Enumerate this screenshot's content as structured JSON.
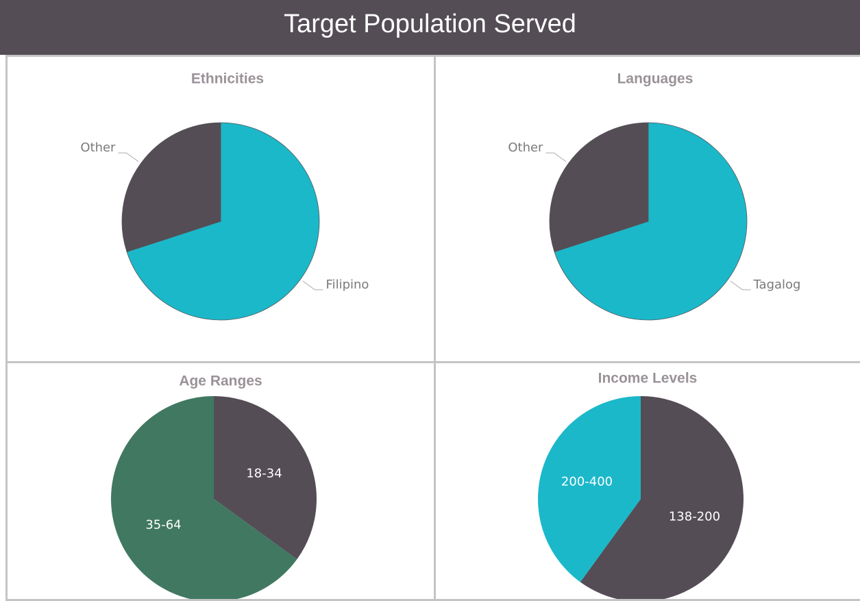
{
  "header": {
    "title": "Target Population Served"
  },
  "chart_data": [
    {
      "type": "pie",
      "title": "Ethnicities",
      "categories": [
        "Filipino",
        "Other"
      ],
      "values": [
        70,
        30
      ],
      "colors": [
        "#1bb8ca",
        "#544d55"
      ]
    },
    {
      "type": "pie",
      "title": "Languages",
      "categories": [
        "Tagalog",
        "Other"
      ],
      "values": [
        70,
        30
      ],
      "colors": [
        "#1bb8ca",
        "#544d55"
      ]
    },
    {
      "type": "pie",
      "title": "Age Ranges",
      "categories": [
        "18-34",
        "35-64"
      ],
      "values": [
        35,
        65
      ],
      "colors": [
        "#544d55",
        "#417862"
      ]
    },
    {
      "type": "pie",
      "title": "Income Levels",
      "categories": [
        "138-200",
        "200-400"
      ],
      "values": [
        60,
        40
      ],
      "colors": [
        "#544d55",
        "#1bb8ca"
      ]
    }
  ]
}
